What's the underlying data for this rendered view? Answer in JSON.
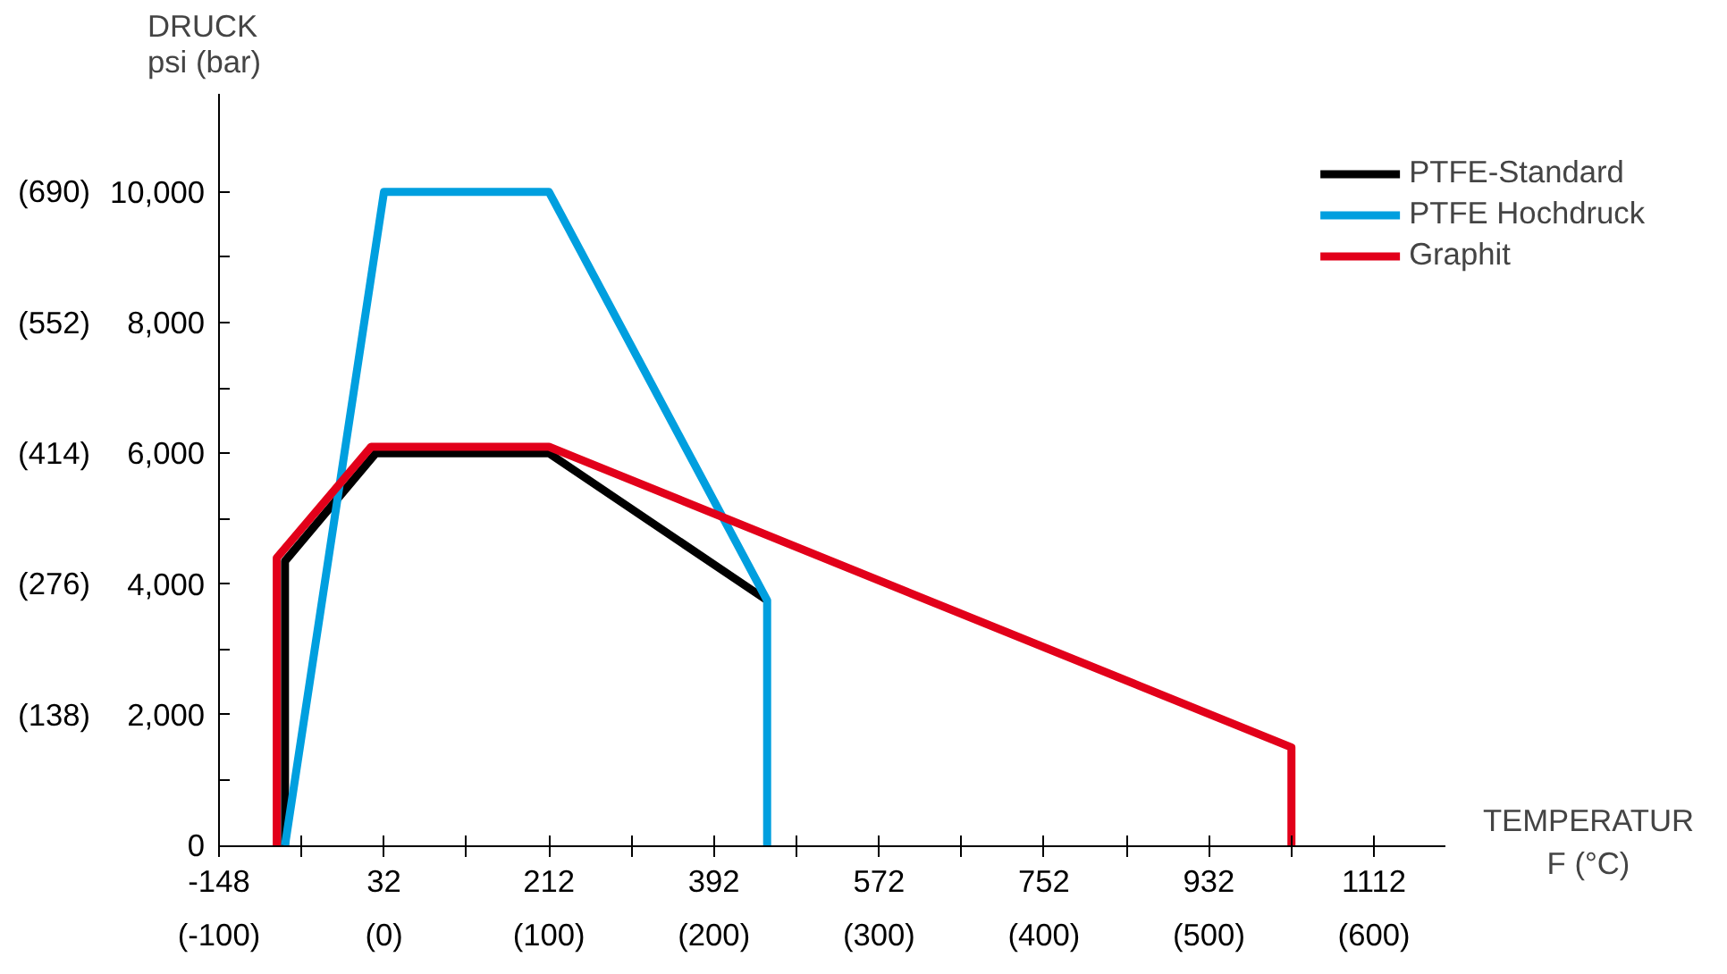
{
  "chart_data": {
    "type": "line",
    "xlabel": "TEMPERATUR\nF (°C)",
    "ylabel": "DRUCK\npsi (bar)",
    "xlim": [
      -148,
      1190
    ],
    "ylim": [
      0,
      11500
    ],
    "xticks": [
      -148,
      {
        "value": -58,
        "label": null
      },
      32,
      {
        "value": 122,
        "label": null
      },
      212,
      {
        "value": 302,
        "label": null
      },
      392,
      {
        "value": 482,
        "label": null
      },
      572,
      {
        "value": 662,
        "label": null
      },
      752,
      {
        "value": 842,
        "label": null
      },
      932,
      {
        "value": 1022,
        "label": null
      },
      1112
    ],
    "x2lim": [
      -100,
      643.3
    ],
    "x2ticks": [
      {
        "value": -100,
        "label": "(-100)"
      },
      {
        "value": 0,
        "label": "(0)"
      },
      {
        "value": 100,
        "label": "(100)"
      },
      {
        "value": 200,
        "label": "(200)"
      },
      {
        "value": 300,
        "label": "(300)"
      },
      {
        "value": 400,
        "label": "(400)"
      },
      {
        "value": 500,
        "label": "(500)"
      },
      {
        "value": 600,
        "label": "(600)"
      }
    ],
    "yticks": [
      0,
      {
        "value": 1000,
        "label": null
      },
      {
        "value": 2000,
        "label": "2,000"
      },
      {
        "value": 3000,
        "label": null
      },
      {
        "value": 4000,
        "label": "4,000"
      },
      {
        "value": 5000,
        "label": null
      },
      {
        "value": 6000,
        "label": "6,000"
      },
      {
        "value": 7000,
        "label": null
      },
      {
        "value": 8000,
        "label": "8,000"
      },
      {
        "value": 9000,
        "label": null
      },
      {
        "value": 10000,
        "label": "10,000"
      }
    ],
    "y2lim": [
      0,
      793
    ],
    "y2ticks": [
      {
        "value": 138,
        "label": "(138)"
      },
      {
        "value": 276,
        "label": "(276)"
      },
      {
        "value": 414,
        "label": "(414)"
      },
      {
        "value": 552,
        "label": "(552)"
      },
      {
        "value": 690,
        "label": "(690)"
      }
    ],
    "grid": false,
    "legend": "top right",
    "marker": "none",
    "line_style": "solid",
    "series": [
      {
        "name": "PTFE-Standard",
        "color": "#000000",
        "x": [
          -76,
          -76,
          23,
          212,
          450
        ],
        "values": [
          0,
          4350,
          6000,
          6000,
          3750
        ]
      },
      {
        "name": "PTFE Hochdruck",
        "color": "#009fdf",
        "x": [
          -76,
          32,
          212,
          450,
          450
        ],
        "values": [
          0,
          10000,
          10000,
          3750,
          0
        ]
      },
      {
        "name": "Graphit",
        "color": "#e2001a",
        "x": [
          -85,
          -85,
          18,
          212,
          1022,
          1022
        ],
        "values": [
          0,
          4400,
          6100,
          6100,
          1500,
          0
        ]
      }
    ]
  }
}
